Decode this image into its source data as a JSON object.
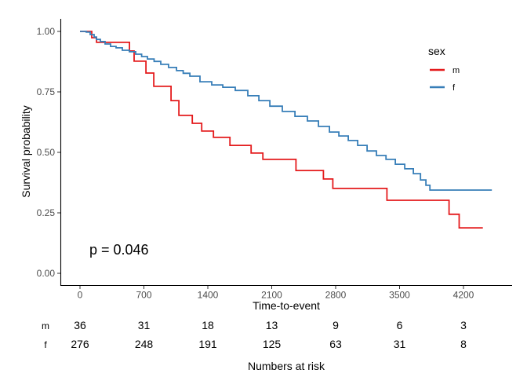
{
  "figure": {
    "background": "#ffffff",
    "p_value_label": "p = 0.046",
    "x_axis": {
      "label": "Time-to-event",
      "ticks": [
        0,
        700,
        1400,
        2100,
        2800,
        3500,
        4200
      ]
    },
    "y_axis": {
      "label": "Survival probability",
      "ticks": [
        {
          "label": "1.00",
          "value": 1.0
        },
        {
          "label": "0.75",
          "value": 0.75
        },
        {
          "label": "0.50",
          "value": 0.5
        },
        {
          "label": "0.25",
          "value": 0.25
        },
        {
          "label": "0.00",
          "value": 0.0
        }
      ]
    },
    "legend": {
      "title": "sex",
      "items": [
        {
          "label": "m",
          "color": "#E41A1C"
        },
        {
          "label": "f",
          "color": "#377EB8"
        }
      ]
    },
    "risk_table": {
      "caption": "Numbers at risk",
      "rows": [
        {
          "label": "m",
          "color": "#E41A1C",
          "values": [
            36,
            31,
            18,
            13,
            9,
            6,
            3
          ]
        },
        {
          "label": "f",
          "color": "#377EB8",
          "values": [
            276,
            248,
            191,
            125,
            63,
            31,
            8
          ]
        }
      ]
    }
  },
  "chart_data": {
    "type": "line",
    "subtype": "kaplan-meier-step",
    "title": "",
    "xlabel": "Time-to-event",
    "ylabel": "Survival probability",
    "xlim": [
      0,
      4740
    ],
    "ylim": [
      0.0,
      1.05
    ],
    "x_ticks": [
      0,
      700,
      1400,
      2100,
      2800,
      3500,
      4200
    ],
    "y_ticks": [
      0.0,
      0.25,
      0.5,
      0.75,
      1.0
    ],
    "grid": false,
    "legend_position": "right",
    "annotations": [
      {
        "text": "p = 0.046",
        "t": 110,
        "S": 0.1
      }
    ],
    "series": [
      {
        "name": "m",
        "color": "#E41A1C",
        "end_t": 4412,
        "points": [
          [
            0,
            1.0
          ],
          [
            129,
            0.974
          ],
          [
            181,
            0.955
          ],
          [
            542,
            0.919
          ],
          [
            593,
            0.877
          ],
          [
            722,
            0.828
          ],
          [
            808,
            0.773
          ],
          [
            997,
            0.714
          ],
          [
            1083,
            0.653
          ],
          [
            1230,
            0.62
          ],
          [
            1333,
            0.588
          ],
          [
            1462,
            0.562
          ],
          [
            1642,
            0.529
          ],
          [
            1874,
            0.497
          ],
          [
            2003,
            0.471
          ],
          [
            2365,
            0.425
          ],
          [
            2666,
            0.39
          ],
          [
            2769,
            0.351
          ],
          [
            3362,
            0.302
          ],
          [
            4042,
            0.244
          ],
          [
            4153,
            0.188
          ]
        ]
      },
      {
        "name": "f",
        "color": "#377EB8",
        "end_t": 4511,
        "points": [
          [
            0,
            1.0
          ],
          [
            69,
            0.997
          ],
          [
            112,
            0.987
          ],
          [
            155,
            0.977
          ],
          [
            180,
            0.967
          ],
          [
            223,
            0.958
          ],
          [
            275,
            0.948
          ],
          [
            335,
            0.938
          ],
          [
            395,
            0.932
          ],
          [
            464,
            0.922
          ],
          [
            541,
            0.916
          ],
          [
            610,
            0.906
          ],
          [
            675,
            0.896
          ],
          [
            739,
            0.886
          ],
          [
            812,
            0.876
          ],
          [
            885,
            0.864
          ],
          [
            970,
            0.851
          ],
          [
            1057,
            0.838
          ],
          [
            1130,
            0.827
          ],
          [
            1203,
            0.815
          ],
          [
            1314,
            0.792
          ],
          [
            1443,
            0.779
          ],
          [
            1564,
            0.769
          ],
          [
            1701,
            0.756
          ],
          [
            1838,
            0.734
          ],
          [
            1959,
            0.714
          ],
          [
            2079,
            0.691
          ],
          [
            2216,
            0.669
          ],
          [
            2354,
            0.649
          ],
          [
            2491,
            0.63
          ],
          [
            2612,
            0.607
          ],
          [
            2732,
            0.584
          ],
          [
            2835,
            0.568
          ],
          [
            2938,
            0.549
          ],
          [
            3041,
            0.529
          ],
          [
            3144,
            0.506
          ],
          [
            3247,
            0.487
          ],
          [
            3351,
            0.471
          ],
          [
            3454,
            0.451
          ],
          [
            3557,
            0.432
          ],
          [
            3651,
            0.412
          ],
          [
            3729,
            0.386
          ],
          [
            3789,
            0.364
          ],
          [
            3832,
            0.344
          ]
        ]
      }
    ]
  }
}
